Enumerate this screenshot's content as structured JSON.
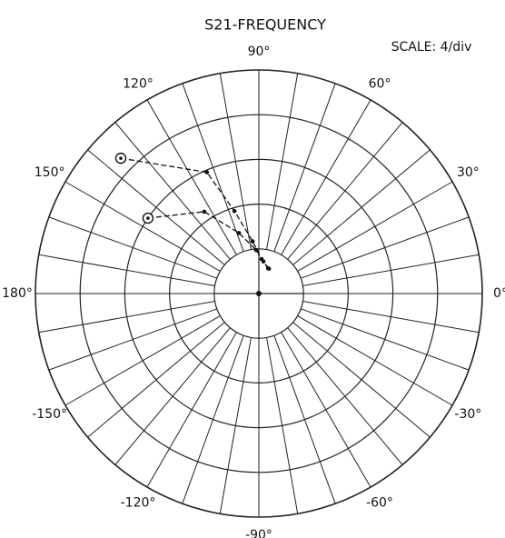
{
  "chart_data": {
    "type": "polar",
    "title": "S21-FREQUENCY",
    "annotation": "SCALE: 4/div",
    "rlim": [
      0,
      20
    ],
    "rticks": [
      0,
      4,
      8,
      12,
      16,
      20
    ],
    "theta_grid_step": 10,
    "thetaticks": [
      {
        "value": 0,
        "label": "0°"
      },
      {
        "value": 30,
        "label": "30°"
      },
      {
        "value": 60,
        "label": "60°"
      },
      {
        "value": 90,
        "label": "90°"
      },
      {
        "value": 120,
        "label": "120°"
      },
      {
        "value": 150,
        "label": "150°"
      },
      {
        "value": 180,
        "label": "180°"
      },
      {
        "value": -150,
        "label": "-150°"
      },
      {
        "value": -120,
        "label": "-120°"
      },
      {
        "value": -90,
        "label": "-90°"
      },
      {
        "value": -60,
        "label": "-60°"
      },
      {
        "value": -30,
        "label": "-30°"
      }
    ],
    "series": [
      {
        "color": "#111111",
        "theta": [
          135.6,
          113.2,
          106.5,
          96.9,
          85.5,
          70
        ],
        "values": [
          17.3,
          11.8,
          7.7,
          4.7,
          3.1,
          2.4
        ]
      },
      {
        "color": "#111111",
        "theta": [
          145.8,
          123.7,
          108.2,
          93.6,
          81.9,
          68
        ],
        "values": [
          12.0,
          8.8,
          5.7,
          3.9,
          2.9,
          2.4
        ]
      }
    ]
  }
}
